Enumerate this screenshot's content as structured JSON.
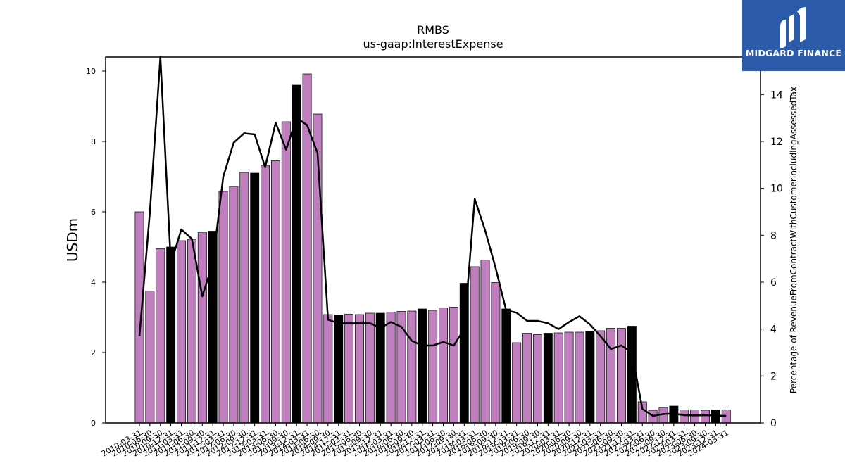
{
  "logo": {
    "text": "MIDGARD FINANCE"
  },
  "chart_data": {
    "type": "bar",
    "title": "RMBS",
    "subtitle": "us-gaap:InterestExpense",
    "ylabel": "USDm",
    "y2label": "Percentage of RevenueFromContractWithCustomerIncludingAssessedTax",
    "ylim": [
      0,
      10.4
    ],
    "y2lim": [
      0,
      15.6
    ],
    "yticks": [
      0,
      2,
      4,
      6,
      8,
      10
    ],
    "y2ticks": [
      0,
      2,
      4,
      6,
      8,
      10,
      12,
      14
    ],
    "grid": false,
    "colors": {
      "bar": "#bf7fbf",
      "bar_highlight": "#000000",
      "line": "#000000"
    },
    "categories": [
      "2010-03-31",
      "2010-06-30",
      "2010-09-30",
      "2010-12-31",
      "2011-03-31",
      "2011-06-30",
      "2011-09-30",
      "2011-12-31",
      "2012-03-31",
      "2012-06-30",
      "2012-09-30",
      "2012-12-31",
      "2013-03-31",
      "2013-06-30",
      "2013-09-30",
      "2013-12-31",
      "2014-03-31",
      "2014-06-30",
      "2014-09-30",
      "2014-12-31",
      "2015-03-31",
      "2015-06-30",
      "2015-09-30",
      "2015-12-31",
      "2016-03-31",
      "2016-06-30",
      "2016-09-30",
      "2016-12-31",
      "2017-03-31",
      "2017-06-30",
      "2017-09-30",
      "2017-12-31",
      "2018-03-31",
      "2018-06-30",
      "2018-09-30",
      "2018-12-31",
      "2019-03-31",
      "2019-06-30",
      "2019-09-30",
      "2019-12-31",
      "2020-03-31",
      "2020-06-30",
      "2020-09-30",
      "2020-12-31",
      "2021-03-31",
      "2021-06-30",
      "2021-09-30",
      "2021-12-31",
      "2022-03-31",
      "2022-06-30",
      "2022-09-30",
      "2022-12-31",
      "2023-03-31",
      "2023-06-30",
      "2023-09-30",
      "2023-12-31",
      "2024-03-31"
    ],
    "tick_labels": [
      "2010-03-31",
      "2010-06-30",
      "2010-09-30",
      "2010-12-31",
      "2011-03-31",
      "2011-06-30",
      "2011-09-30",
      "2011-12-31",
      "2012-03-31",
      "2012-06-30",
      "2012-09-30",
      "2012-12-31",
      "2013-03-31",
      "2013-06-30",
      "2013-09-30",
      "2013-12-31",
      "2014-03-31",
      "2014-06-30",
      "2014-09-30",
      "2014-12-31",
      "2015-03-31",
      "2015-06-30",
      "2015-09-30",
      "2015-12-31",
      "2016-03-31",
      "2016-06-30",
      "2016-09-30",
      "2016-12-31",
      "2017-03-31",
      "2017-06-30",
      "2017-09-30",
      "2017-12-31",
      "2018-03-31",
      "2018-06-30",
      "2018-09-30",
      "2018-12-31",
      "2019-03-31",
      "2019-06-30",
      "2019-09-30",
      "2019-12-31",
      "2020-03-31",
      "2020-06-30",
      "2020-09-30",
      "2020-12-31",
      "2021-03-31",
      "2021-06-30",
      "2021-09-30",
      "2021-12-31",
      "2022-03-31",
      "2022-06-30",
      "2022-09-30",
      "2022-12-31",
      "2023-03-31",
      "2023-06-30",
      "2023-09-30",
      "2023-12-31",
      "2024-03-31"
    ],
    "bar_values": [
      6.0,
      3.75,
      4.95,
      5.0,
      5.18,
      5.22,
      5.42,
      5.45,
      6.58,
      6.72,
      7.12,
      7.1,
      7.32,
      7.45,
      8.56,
      9.6,
      9.92,
      8.78,
      3.08,
      3.07,
      3.09,
      3.08,
      3.12,
      3.12,
      3.15,
      3.17,
      3.18,
      3.24,
      3.2,
      3.27,
      3.29,
      3.97,
      4.44,
      4.63,
      3.99,
      3.24,
      2.28,
      2.55,
      2.51,
      2.55,
      2.56,
      2.58,
      2.58,
      2.61,
      2.62,
      2.69,
      2.69,
      2.75,
      0.6,
      0.36,
      0.44,
      0.48,
      0.37,
      0.37,
      0.36,
      0.37,
      0.37
    ],
    "highlighted": [
      false,
      false,
      false,
      true,
      false,
      false,
      false,
      true,
      false,
      false,
      false,
      true,
      false,
      false,
      false,
      true,
      false,
      false,
      false,
      true,
      false,
      false,
      false,
      true,
      false,
      false,
      false,
      true,
      false,
      false,
      false,
      true,
      false,
      false,
      false,
      true,
      false,
      false,
      false,
      true,
      false,
      false,
      false,
      true,
      false,
      false,
      false,
      true,
      false,
      false,
      false,
      true,
      false,
      false,
      false,
      true,
      false
    ],
    "line_values": [
      3.7,
      9.0,
      15.6,
      6.8,
      8.25,
      7.85,
      5.4,
      6.8,
      10.5,
      11.95,
      12.35,
      12.3,
      10.9,
      12.8,
      11.65,
      13.0,
      12.7,
      11.5,
      4.4,
      4.25,
      4.25,
      4.25,
      4.25,
      4.05,
      4.3,
      4.1,
      3.5,
      3.3,
      3.3,
      3.45,
      3.3,
      4.0,
      9.55,
      8.2,
      6.6,
      4.8,
      4.7,
      4.35,
      4.35,
      4.25,
      4.0,
      4.3,
      4.55,
      4.2,
      3.7,
      3.15,
      3.3,
      3.0,
      0.6,
      0.3,
      0.38,
      0.4,
      0.33,
      0.32,
      0.33,
      0.31,
      0.3
    ]
  }
}
